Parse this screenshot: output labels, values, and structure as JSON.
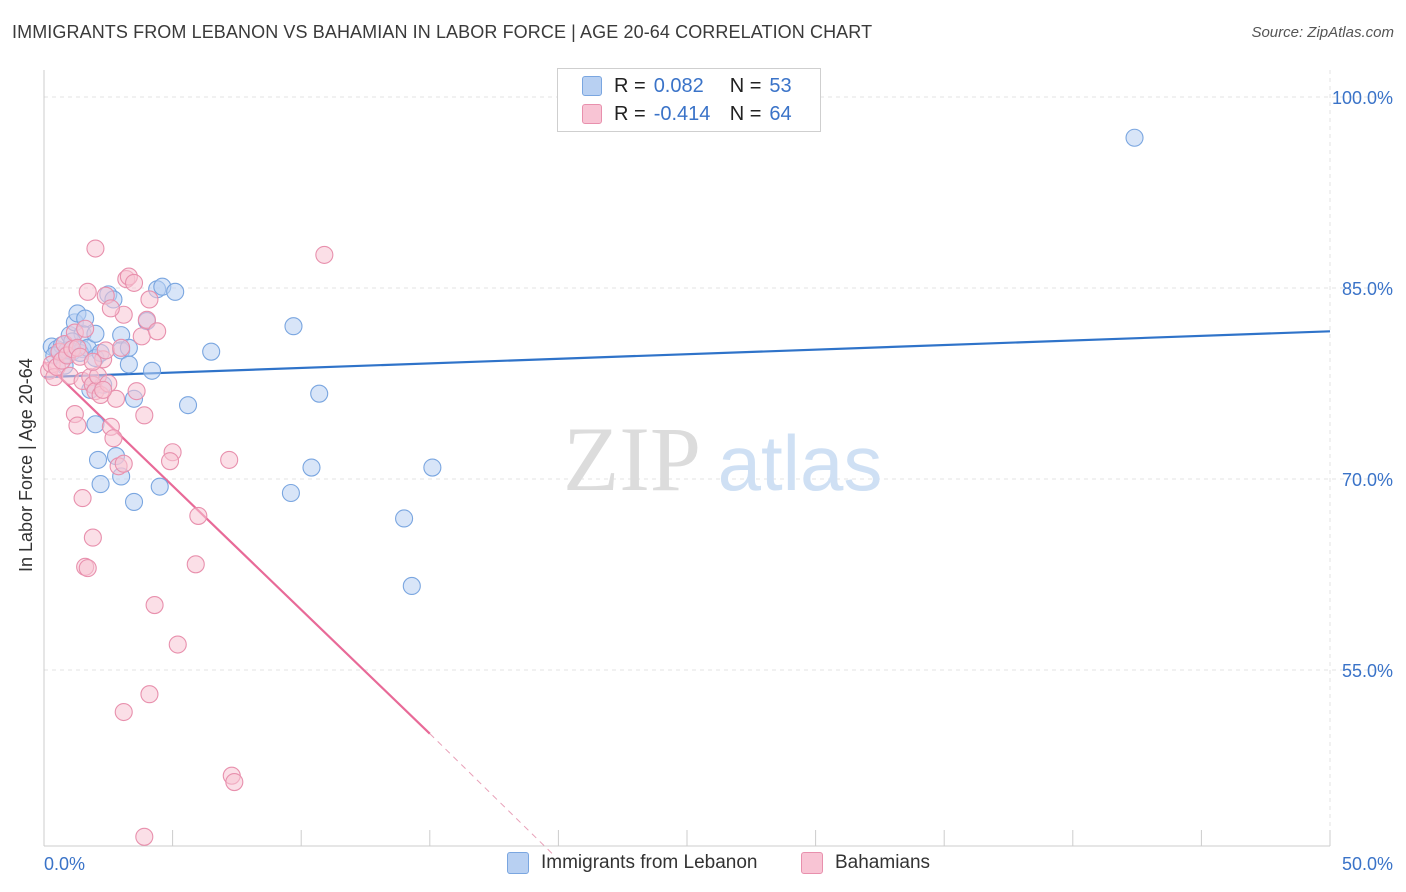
{
  "title": "IMMIGRANTS FROM LEBANON VS BAHAMIAN IN LABOR FORCE | AGE 20-64 CORRELATION CHART",
  "source": "Source: ZipAtlas.com",
  "watermark": {
    "zip": "ZIP",
    "atlas": "atlas"
  },
  "legend": {
    "r_label": "R =",
    "n_label": "N =",
    "rows": [
      {
        "r": "0.082",
        "n": "53",
        "fill": "#b8d0f2",
        "stroke": "#7aa6e0"
      },
      {
        "r": "-0.414",
        "n": "64",
        "fill": "#f8c4d4",
        "stroke": "#e890ad"
      }
    ]
  },
  "bottom_legend": [
    {
      "label": "Immigrants from Lebanon",
      "fill": "#b8d0f2",
      "stroke": "#7aa6e0"
    },
    {
      "label": "Bahamians",
      "fill": "#f8c4d4",
      "stroke": "#e890ad"
    }
  ],
  "chart_data": {
    "type": "scatter",
    "title": "IMMIGRANTS FROM LEBANON VS BAHAMIAN IN LABOR FORCE | AGE 20-64 CORRELATION CHART",
    "xlabel": "",
    "ylabel": "In Labor Force | Age 20-64",
    "xlim": [
      0,
      50
    ],
    "ylim": [
      40,
      102
    ],
    "x_tick_labels": [
      "0.0%",
      "50.0%"
    ],
    "y_ticks": [
      55,
      70,
      85,
      100
    ],
    "y_tick_labels": [
      "55.0%",
      "70.0%",
      "85.0%",
      "100.0%"
    ],
    "grid": true,
    "series": [
      {
        "name": "Immigrants from Lebanon",
        "color": "#7aa6e0",
        "fill": "#b8d0f2",
        "line_color": "#2f73c9",
        "trend": {
          "x": [
            0,
            50
          ],
          "y": [
            78.0,
            81.6
          ]
        },
        "points": [
          [
            0.3,
            80.4
          ],
          [
            0.5,
            80.2
          ],
          [
            0.6,
            79.9
          ],
          [
            0.7,
            80.5
          ],
          [
            0.9,
            79.8
          ],
          [
            1.0,
            81.3
          ],
          [
            1.1,
            80.0
          ],
          [
            0.4,
            79.7
          ],
          [
            0.8,
            78.9
          ],
          [
            1.2,
            82.3
          ],
          [
            1.3,
            83.0
          ],
          [
            1.5,
            81.4
          ],
          [
            1.5,
            80.2
          ],
          [
            1.6,
            82.6
          ],
          [
            1.4,
            79.9
          ],
          [
            1.7,
            80.3
          ],
          [
            1.8,
            77.0
          ],
          [
            2.0,
            79.5
          ],
          [
            2.0,
            81.4
          ],
          [
            2.2,
            79.9
          ],
          [
            1.9,
            77.4
          ],
          [
            2.5,
            84.5
          ],
          [
            2.7,
            84.1
          ],
          [
            2.3,
            77.4
          ],
          [
            2.0,
            74.3
          ],
          [
            2.1,
            71.5
          ],
          [
            2.2,
            69.6
          ],
          [
            2.8,
            71.8
          ],
          [
            3.0,
            81.3
          ],
          [
            3.0,
            80.1
          ],
          [
            3.3,
            79.0
          ],
          [
            3.5,
            76.3
          ],
          [
            3.5,
            68.2
          ],
          [
            3.0,
            70.2
          ],
          [
            4.0,
            82.4
          ],
          [
            4.2,
            78.5
          ],
          [
            4.4,
            84.9
          ],
          [
            4.5,
            69.4
          ],
          [
            4.6,
            85.1
          ],
          [
            5.1,
            84.7
          ],
          [
            5.6,
            75.8
          ],
          [
            6.5,
            80.0
          ],
          [
            9.7,
            82.0
          ],
          [
            9.6,
            68.9
          ],
          [
            10.4,
            70.9
          ],
          [
            10.7,
            76.7
          ],
          [
            14.0,
            66.9
          ],
          [
            14.3,
            61.6
          ],
          [
            15.1,
            70.9
          ],
          [
            42.4,
            96.8
          ],
          [
            0.9,
            80.1
          ],
          [
            1.1,
            80.8
          ],
          [
            3.3,
            80.3
          ]
        ]
      },
      {
        "name": "Bahamians",
        "color": "#e890ad",
        "fill": "#f8c4d4",
        "line_color": "#e86a98",
        "trend": {
          "x": [
            0,
            15
          ],
          "y": [
            79.2,
            50.0
          ]
        },
        "trend_dashed": {
          "x": [
            15,
            19.8
          ],
          "y": [
            50.0,
            40.5
          ]
        },
        "points": [
          [
            0.2,
            78.5
          ],
          [
            0.3,
            79.0
          ],
          [
            0.4,
            78.0
          ],
          [
            0.5,
            78.8
          ],
          [
            0.6,
            80.0
          ],
          [
            0.7,
            79.3
          ],
          [
            0.8,
            80.6
          ],
          [
            0.9,
            79.7
          ],
          [
            1.0,
            78.1
          ],
          [
            1.1,
            80.2
          ],
          [
            1.2,
            81.5
          ],
          [
            1.3,
            80.3
          ],
          [
            1.4,
            79.6
          ],
          [
            1.5,
            77.7
          ],
          [
            1.6,
            81.8
          ],
          [
            1.8,
            78.0
          ],
          [
            1.9,
            77.4
          ],
          [
            2.0,
            76.9
          ],
          [
            2.1,
            78.1
          ],
          [
            2.2,
            76.6
          ],
          [
            2.3,
            79.4
          ],
          [
            2.4,
            80.1
          ],
          [
            2.5,
            77.5
          ],
          [
            2.6,
            74.1
          ],
          [
            2.7,
            73.2
          ],
          [
            2.8,
            76.3
          ],
          [
            2.9,
            71.0
          ],
          [
            3.0,
            80.3
          ],
          [
            3.1,
            82.9
          ],
          [
            3.2,
            85.7
          ],
          [
            3.3,
            85.9
          ],
          [
            3.5,
            85.4
          ],
          [
            3.6,
            76.9
          ],
          [
            3.8,
            81.2
          ],
          [
            3.9,
            75.0
          ],
          [
            4.0,
            82.5
          ],
          [
            4.1,
            84.1
          ],
          [
            4.4,
            81.6
          ],
          [
            1.2,
            75.1
          ],
          [
            1.3,
            74.2
          ],
          [
            1.5,
            68.5
          ],
          [
            1.6,
            63.1
          ],
          [
            1.9,
            65.4
          ],
          [
            1.7,
            63.0
          ],
          [
            1.7,
            84.7
          ],
          [
            2.0,
            88.1
          ],
          [
            2.4,
            84.4
          ],
          [
            2.6,
            83.4
          ],
          [
            3.1,
            71.2
          ],
          [
            4.3,
            60.1
          ],
          [
            5.0,
            72.1
          ],
          [
            4.9,
            71.4
          ],
          [
            5.2,
            57.0
          ],
          [
            5.9,
            63.3
          ],
          [
            6.0,
            67.1
          ],
          [
            7.2,
            71.5
          ],
          [
            10.9,
            87.6
          ],
          [
            4.1,
            53.1
          ],
          [
            3.1,
            51.7
          ],
          [
            7.3,
            46.7
          ],
          [
            7.4,
            46.2
          ],
          [
            3.9,
            41.9
          ],
          [
            1.9,
            79.2
          ],
          [
            2.3,
            77.0
          ]
        ]
      }
    ]
  }
}
